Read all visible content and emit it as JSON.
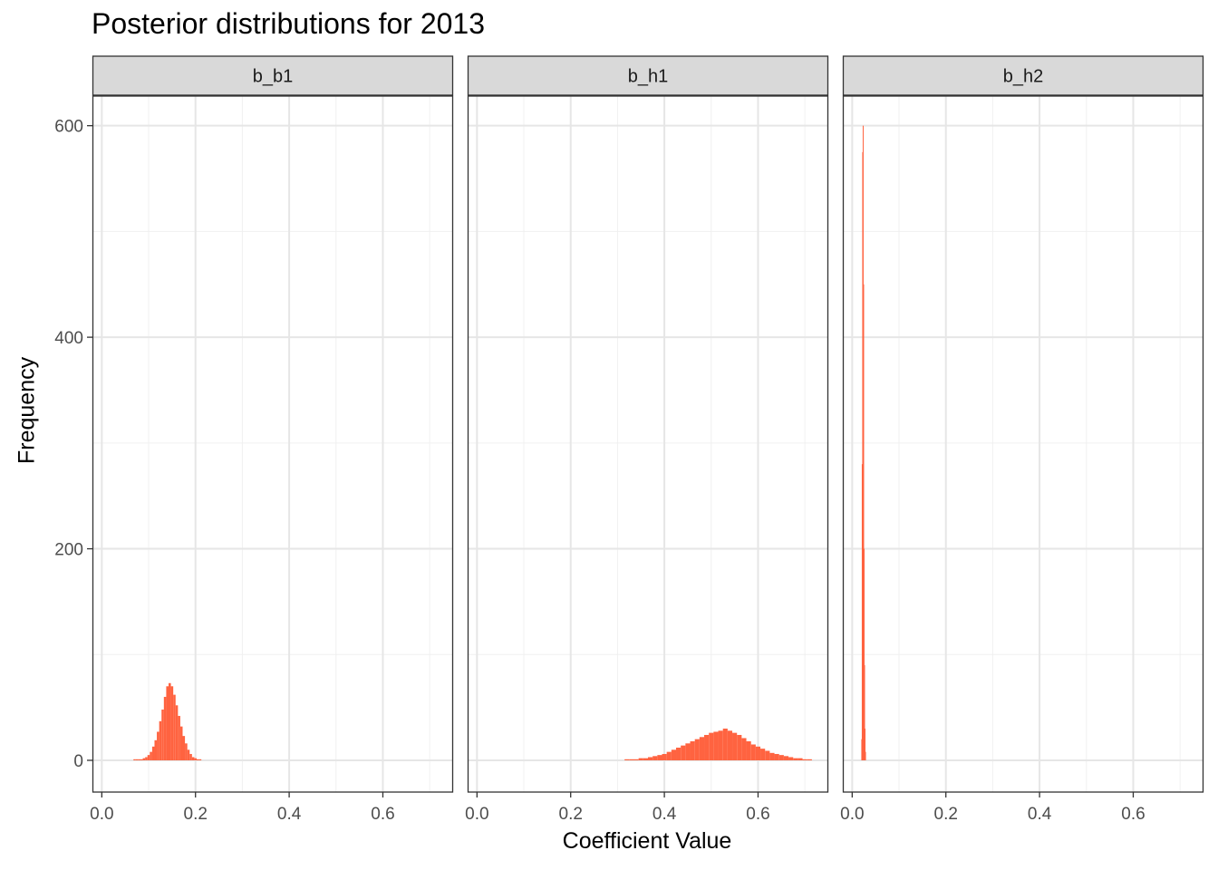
{
  "chart_data": {
    "type": "bar",
    "title": "Posterior distributions for 2013",
    "xlabel": "Coefficient Value",
    "ylabel": "Frequency",
    "xlim": [
      -0.02,
      0.75
    ],
    "ylim": [
      -30,
      628
    ],
    "x_ticks": [
      0.0,
      0.2,
      0.4,
      0.6
    ],
    "x_tick_labels": [
      "0.0",
      "0.2",
      "0.4",
      "0.6"
    ],
    "y_ticks": [
      0,
      200,
      400,
      600
    ],
    "y_tick_labels": [
      "0",
      "200",
      "400",
      "600"
    ],
    "grid": true,
    "bar_color": "#FF6340",
    "panels": [
      {
        "name": "b_b1",
        "bins": [
          {
            "x": 0.07,
            "y": 1
          },
          {
            "x": 0.075,
            "y": 1
          },
          {
            "x": 0.08,
            "y": 1
          },
          {
            "x": 0.085,
            "y": 1
          },
          {
            "x": 0.09,
            "y": 2
          },
          {
            "x": 0.095,
            "y": 3
          },
          {
            "x": 0.1,
            "y": 5
          },
          {
            "x": 0.105,
            "y": 8
          },
          {
            "x": 0.11,
            "y": 13
          },
          {
            "x": 0.115,
            "y": 19
          },
          {
            "x": 0.12,
            "y": 27
          },
          {
            "x": 0.125,
            "y": 37
          },
          {
            "x": 0.13,
            "y": 48
          },
          {
            "x": 0.135,
            "y": 60
          },
          {
            "x": 0.14,
            "y": 70
          },
          {
            "x": 0.145,
            "y": 73
          },
          {
            "x": 0.15,
            "y": 70
          },
          {
            "x": 0.155,
            "y": 62
          },
          {
            "x": 0.16,
            "y": 52
          },
          {
            "x": 0.165,
            "y": 42
          },
          {
            "x": 0.17,
            "y": 32
          },
          {
            "x": 0.175,
            "y": 23
          },
          {
            "x": 0.18,
            "y": 16
          },
          {
            "x": 0.185,
            "y": 10
          },
          {
            "x": 0.19,
            "y": 6
          },
          {
            "x": 0.195,
            "y": 3
          },
          {
            "x": 0.2,
            "y": 2
          },
          {
            "x": 0.205,
            "y": 1
          },
          {
            "x": 0.21,
            "y": 1
          }
        ]
      },
      {
        "name": "b_h1",
        "bins": [
          {
            "x": 0.32,
            "y": 1
          },
          {
            "x": 0.33,
            "y": 1
          },
          {
            "x": 0.34,
            "y": 1
          },
          {
            "x": 0.35,
            "y": 2
          },
          {
            "x": 0.36,
            "y": 2
          },
          {
            "x": 0.37,
            "y": 3
          },
          {
            "x": 0.38,
            "y": 4
          },
          {
            "x": 0.39,
            "y": 5
          },
          {
            "x": 0.4,
            "y": 6
          },
          {
            "x": 0.41,
            "y": 8
          },
          {
            "x": 0.42,
            "y": 10
          },
          {
            "x": 0.43,
            "y": 12
          },
          {
            "x": 0.44,
            "y": 14
          },
          {
            "x": 0.45,
            "y": 16
          },
          {
            "x": 0.46,
            "y": 18
          },
          {
            "x": 0.47,
            "y": 20
          },
          {
            "x": 0.48,
            "y": 22
          },
          {
            "x": 0.49,
            "y": 24
          },
          {
            "x": 0.5,
            "y": 26
          },
          {
            "x": 0.51,
            "y": 27
          },
          {
            "x": 0.52,
            "y": 28
          },
          {
            "x": 0.53,
            "y": 30
          },
          {
            "x": 0.54,
            "y": 28
          },
          {
            "x": 0.55,
            "y": 26
          },
          {
            "x": 0.56,
            "y": 24
          },
          {
            "x": 0.57,
            "y": 21
          },
          {
            "x": 0.58,
            "y": 18
          },
          {
            "x": 0.59,
            "y": 15
          },
          {
            "x": 0.6,
            "y": 13
          },
          {
            "x": 0.61,
            "y": 11
          },
          {
            "x": 0.62,
            "y": 9
          },
          {
            "x": 0.63,
            "y": 7
          },
          {
            "x": 0.64,
            "y": 6
          },
          {
            "x": 0.65,
            "y": 5
          },
          {
            "x": 0.66,
            "y": 4
          },
          {
            "x": 0.67,
            "y": 3
          },
          {
            "x": 0.68,
            "y": 2
          },
          {
            "x": 0.69,
            "y": 2
          },
          {
            "x": 0.7,
            "y": 1
          },
          {
            "x": 0.71,
            "y": 1
          }
        ]
      },
      {
        "name": "b_h2",
        "bins": [
          {
            "x": 0.02,
            "y": 20
          },
          {
            "x": 0.021,
            "y": 280
          },
          {
            "x": 0.022,
            "y": 575
          },
          {
            "x": 0.023,
            "y": 600
          },
          {
            "x": 0.024,
            "y": 450
          },
          {
            "x": 0.025,
            "y": 200
          },
          {
            "x": 0.026,
            "y": 90
          },
          {
            "x": 0.027,
            "y": 30
          },
          {
            "x": 0.028,
            "y": 8
          }
        ]
      }
    ]
  }
}
